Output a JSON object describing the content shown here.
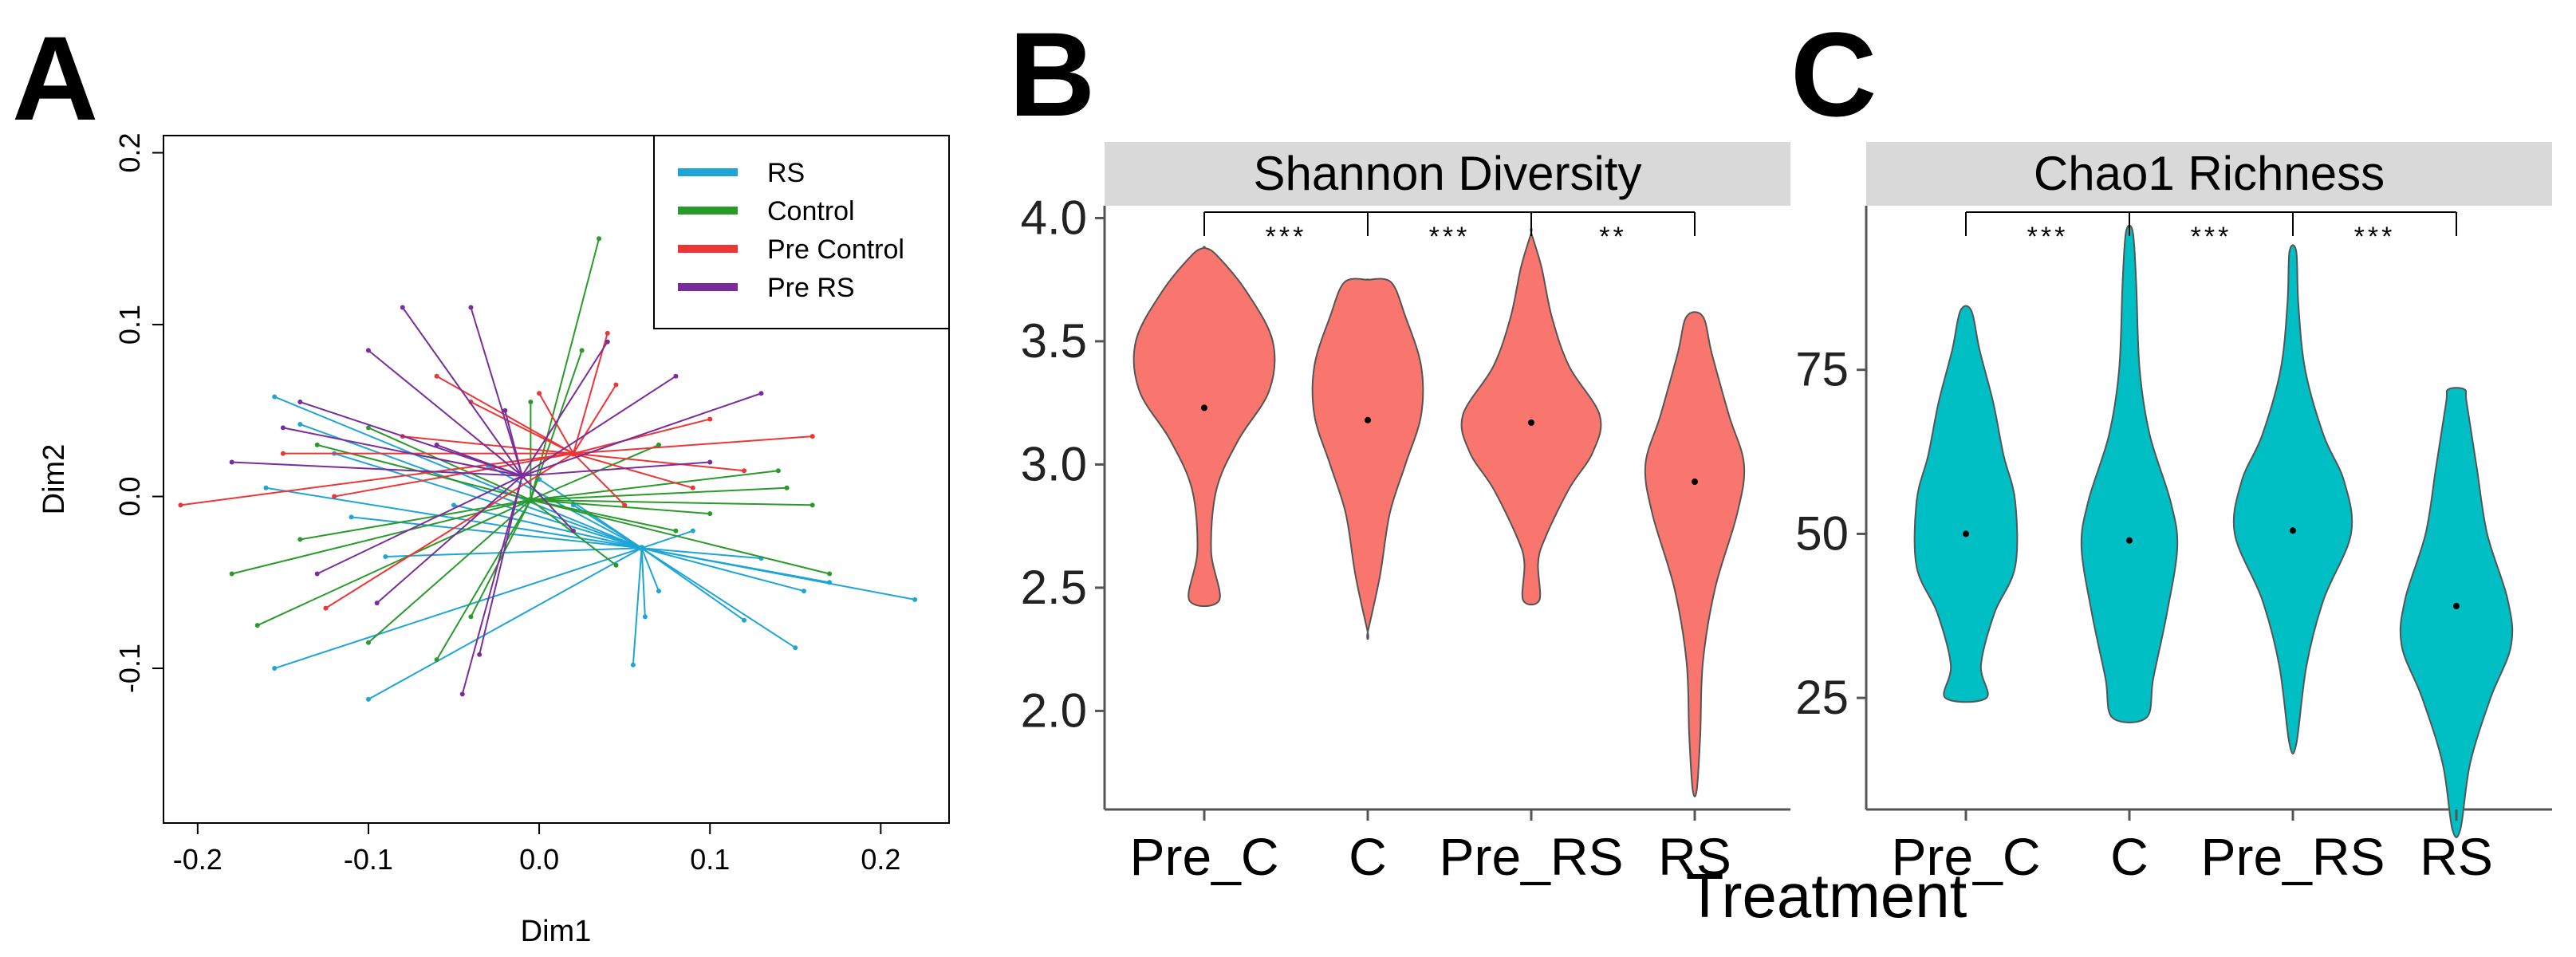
{
  "panel_labels": [
    "A",
    "B",
    "C"
  ],
  "colors": {
    "RS": "#1ea5d6",
    "Control": "#2a9a2a",
    "Pre Control": "#ee3535",
    "Pre RS": "#7a2d9a",
    "violin_B": "#f8766d",
    "violin_C": "#00bfc4",
    "strip": "#d9d9d9"
  },
  "chart_data": [
    {
      "panel": "A",
      "type": "scatter",
      "subtype": "PCoA betadisper spider plot",
      "xlabel": "Dim1",
      "ylabel": "Dim2",
      "xlim": [
        -0.22,
        0.24
      ],
      "ylim": [
        -0.19,
        0.21
      ],
      "xticks": [
        -0.2,
        -0.1,
        0.0,
        0.1,
        0.2
      ],
      "xtick_labels": [
        "-0.2",
        "-0.1",
        "0.0",
        "0.1",
        "0.2"
      ],
      "yticks": [
        -0.1,
        0.0,
        0.1,
        0.2
      ],
      "ytick_labels": [
        "-0.1",
        "0.0",
        "0.1",
        "0.2"
      ],
      "legend": {
        "position": "top-right",
        "entries": [
          "RS",
          "Control",
          "Pre Control",
          "Pre RS"
        ]
      },
      "series": [
        {
          "name": "RS",
          "centroid": [
            0.06,
            -0.03
          ],
          "points": [
            [
              -0.155,
              0.058
            ],
            [
              -0.14,
              0.042
            ],
            [
              -0.12,
              0.025
            ],
            [
              -0.16,
              0.005
            ],
            [
              -0.11,
              -0.012
            ],
            [
              -0.09,
              -0.035
            ],
            [
              -0.155,
              -0.1
            ],
            [
              -0.1,
              -0.118
            ],
            [
              -0.03,
              0.018
            ],
            [
              0.0,
              0.01
            ],
            [
              0.055,
              -0.098
            ],
            [
              0.062,
              -0.07
            ],
            [
              0.12,
              -0.072
            ],
            [
              0.15,
              -0.088
            ],
            [
              0.22,
              -0.06
            ],
            [
              0.155,
              -0.055
            ],
            [
              0.17,
              -0.05
            ],
            [
              0.13,
              -0.036
            ],
            [
              0.09,
              -0.02
            ],
            [
              0.02,
              -0.005
            ],
            [
              0.07,
              -0.055
            ],
            [
              -0.05,
              -0.005
            ]
          ]
        },
        {
          "name": "Control",
          "centroid": [
            -0.005,
            -0.002
          ],
          "points": [
            [
              -0.165,
              -0.075
            ],
            [
              -0.18,
              -0.045
            ],
            [
              -0.14,
              -0.025
            ],
            [
              -0.06,
              -0.095
            ],
            [
              -0.04,
              -0.07
            ],
            [
              -0.1,
              -0.085
            ],
            [
              0.035,
              0.15
            ],
            [
              0.025,
              0.085
            ],
            [
              -0.005,
              0.055
            ],
            [
              0.07,
              0.03
            ],
            [
              0.14,
              0.015
            ],
            [
              0.145,
              0.005
            ],
            [
              0.1,
              -0.01
            ],
            [
              0.16,
              -0.005
            ],
            [
              0.17,
              -0.045
            ],
            [
              0.045,
              -0.04
            ],
            [
              -0.1,
              0.04
            ],
            [
              -0.13,
              0.03
            ],
            [
              0.08,
              -0.02
            ]
          ]
        },
        {
          "name": "Pre Control",
          "centroid": [
            0.02,
            0.025
          ],
          "points": [
            [
              -0.21,
              -0.005
            ],
            [
              -0.15,
              0.025
            ],
            [
              -0.12,
              0.0
            ],
            [
              -0.125,
              -0.065
            ],
            [
              -0.04,
              0.055
            ],
            [
              0.04,
              0.095
            ],
            [
              0.045,
              0.065
            ],
            [
              0.1,
              0.045
            ],
            [
              0.16,
              0.035
            ],
            [
              0.12,
              0.015
            ],
            [
              0.09,
              0.005
            ],
            [
              0.05,
              -0.005
            ],
            [
              -0.06,
              0.07
            ],
            [
              -0.08,
              0.035
            ],
            [
              0.0,
              0.06
            ]
          ]
        },
        {
          "name": "Pre RS",
          "centroid": [
            -0.01,
            0.012
          ],
          "points": [
            [
              -0.08,
              0.11
            ],
            [
              -0.1,
              0.085
            ],
            [
              -0.04,
              0.11
            ],
            [
              -0.14,
              0.055
            ],
            [
              -0.15,
              0.04
            ],
            [
              -0.18,
              0.02
            ],
            [
              -0.13,
              -0.045
            ],
            [
              -0.095,
              -0.062
            ],
            [
              -0.045,
              -0.115
            ],
            [
              -0.035,
              -0.092
            ],
            [
              0.13,
              0.06
            ],
            [
              0.08,
              0.07
            ],
            [
              0.04,
              0.09
            ],
            [
              0.1,
              0.02
            ],
            [
              -0.02,
              0.05
            ],
            [
              0.02,
              -0.02
            ],
            [
              -0.06,
              0.03
            ]
          ]
        }
      ]
    },
    {
      "panel": "B",
      "type": "violin",
      "facet_title": "Shannon Diversity",
      "xlabel": "Treatment",
      "ylabel": "",
      "ylim": [
        1.6,
        4.05
      ],
      "yticks": [
        2.0,
        2.5,
        3.0,
        3.5,
        4.0
      ],
      "ytick_labels": [
        "2.0",
        "2.5",
        "3.0",
        "3.5",
        "4.0"
      ],
      "categories": [
        "Pre_C",
        "C",
        "Pre_RS",
        "RS"
      ],
      "violins": [
        {
          "name": "Pre_C",
          "min": 2.45,
          "max": 3.88,
          "mean": 3.23,
          "profile": [
            [
              2.45,
              0.22
            ],
            [
              2.65,
              0.1
            ],
            [
              2.9,
              0.18
            ],
            [
              3.1,
              0.5
            ],
            [
              3.3,
              0.95
            ],
            [
              3.5,
              1.0
            ],
            [
              3.7,
              0.62
            ],
            [
              3.85,
              0.18
            ],
            [
              3.88,
              0.0
            ]
          ]
        },
        {
          "name": "C",
          "min": 2.32,
          "max": 3.75,
          "mean": 3.18,
          "profile": [
            [
              2.32,
              0.0
            ],
            [
              2.55,
              0.18
            ],
            [
              2.8,
              0.32
            ],
            [
              3.0,
              0.55
            ],
            [
              3.2,
              0.78
            ],
            [
              3.4,
              0.78
            ],
            [
              3.6,
              0.55
            ],
            [
              3.74,
              0.34
            ],
            [
              3.75,
              0.0
            ]
          ]
        },
        {
          "name": "Pre_RS",
          "min": 2.45,
          "max": 3.94,
          "mean": 3.17,
          "profile": [
            [
              2.45,
              0.12
            ],
            [
              2.6,
              0.1
            ],
            [
              2.7,
              0.2
            ],
            [
              2.9,
              0.55
            ],
            [
              3.05,
              0.9
            ],
            [
              3.2,
              1.0
            ],
            [
              3.4,
              0.55
            ],
            [
              3.6,
              0.3
            ],
            [
              3.8,
              0.15
            ],
            [
              3.94,
              0.0
            ]
          ]
        },
        {
          "name": "RS",
          "min": 1.68,
          "max": 3.6,
          "mean": 2.93,
          "profile": [
            [
              1.68,
              0.03
            ],
            [
              1.9,
              0.08
            ],
            [
              2.2,
              0.12
            ],
            [
              2.5,
              0.3
            ],
            [
              2.8,
              0.62
            ],
            [
              3.0,
              0.72
            ],
            [
              3.2,
              0.5
            ],
            [
              3.45,
              0.25
            ],
            [
              3.6,
              0.12
            ]
          ]
        }
      ],
      "significance": [
        "***",
        "***",
        "**"
      ]
    },
    {
      "panel": "C",
      "type": "violin",
      "facet_title": "Chao1 Richness",
      "xlabel": "Treatment",
      "ylabel": "",
      "ylim": [
        8,
        100
      ],
      "yticks": [
        25,
        50,
        75
      ],
      "ytick_labels": [
        "25",
        "50",
        "75"
      ],
      "categories": [
        "Pre_C",
        "C",
        "Pre_RS",
        "RS"
      ],
      "violins": [
        {
          "name": "Pre_C",
          "min": 25,
          "max": 84,
          "mean": 50,
          "profile": [
            [
              25,
              0.3
            ],
            [
              30,
              0.22
            ],
            [
              38,
              0.42
            ],
            [
              45,
              0.72
            ],
            [
              55,
              0.72
            ],
            [
              62,
              0.55
            ],
            [
              70,
              0.4
            ],
            [
              78,
              0.2
            ],
            [
              84,
              0.08
            ]
          ]
        },
        {
          "name": "C",
          "min": 22,
          "max": 96,
          "mean": 49,
          "profile": [
            [
              22,
              0.25
            ],
            [
              28,
              0.35
            ],
            [
              38,
              0.55
            ],
            [
              48,
              0.7
            ],
            [
              55,
              0.6
            ],
            [
              65,
              0.3
            ],
            [
              75,
              0.15
            ],
            [
              88,
              0.1
            ],
            [
              96,
              0.05
            ]
          ]
        },
        {
          "name": "Pre_RS",
          "min": 18,
          "max": 93,
          "mean": 50.5,
          "profile": [
            [
              18,
              0.05
            ],
            [
              30,
              0.2
            ],
            [
              40,
              0.45
            ],
            [
              50,
              0.85
            ],
            [
              58,
              0.75
            ],
            [
              65,
              0.45
            ],
            [
              75,
              0.18
            ],
            [
              85,
              0.08
            ],
            [
              93,
              0.05
            ]
          ]
        },
        {
          "name": "RS",
          "min": 5,
          "max": 72,
          "mean": 39,
          "profile": [
            [
              5,
              0.06
            ],
            [
              15,
              0.2
            ],
            [
              25,
              0.5
            ],
            [
              33,
              0.8
            ],
            [
              40,
              0.75
            ],
            [
              50,
              0.45
            ],
            [
              60,
              0.3
            ],
            [
              70,
              0.15
            ],
            [
              72,
              0.12
            ]
          ]
        }
      ],
      "significance": [
        "***",
        "***",
        "***"
      ]
    }
  ]
}
